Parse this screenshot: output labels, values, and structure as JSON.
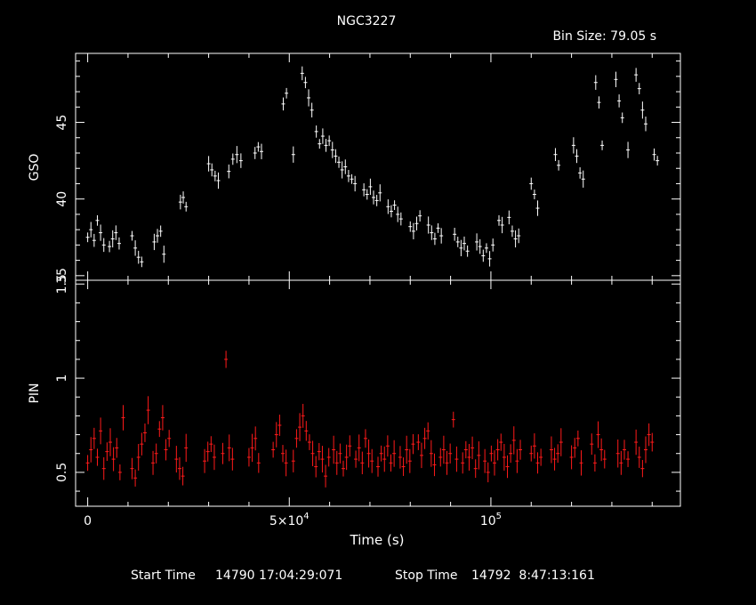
{
  "chart_data": [
    {
      "type": "scatter",
      "title": "NGC3227",
      "subtitle": "Bin Size: 79.05 s",
      "ylabel": "GSO",
      "xlim": [
        -3000,
        147000
      ],
      "ylim": [
        34.7,
        49.5
      ],
      "yticks": [
        35,
        40,
        45
      ],
      "ytick_labels": [
        "35",
        "40",
        "45"
      ],
      "grid": false,
      "series": [
        {
          "color": "#ffffff",
          "points": [
            [
              0,
              37.5
            ],
            [
              800,
              38.0
            ],
            [
              1600,
              37.3
            ],
            [
              2400,
              38.6
            ],
            [
              3200,
              37.8
            ],
            [
              4000,
              37.0
            ],
            [
              5400,
              36.9
            ],
            [
              6200,
              37.4
            ],
            [
              7000,
              37.8
            ],
            [
              7800,
              37.1
            ],
            [
              11000,
              37.6
            ],
            [
              11800,
              36.8
            ],
            [
              12600,
              36.2
            ],
            [
              13400,
              35.9
            ],
            [
              16500,
              37.2
            ],
            [
              17300,
              37.6
            ],
            [
              18100,
              37.9
            ],
            [
              18900,
              36.4
            ],
            [
              23000,
              39.8
            ],
            [
              23700,
              40.1
            ],
            [
              24400,
              39.5
            ],
            [
              30000,
              42.3
            ],
            [
              30800,
              41.9
            ],
            [
              31600,
              41.5
            ],
            [
              32400,
              41.2
            ],
            [
              35000,
              41.8
            ],
            [
              36000,
              42.6
            ],
            [
              37000,
              42.9
            ],
            [
              38000,
              42.5
            ],
            [
              41500,
              43.0
            ],
            [
              42300,
              43.4
            ],
            [
              43100,
              43.1
            ],
            [
              48500,
              46.2
            ],
            [
              49300,
              46.9
            ],
            [
              51000,
              42.9
            ],
            [
              53200,
              48.2
            ],
            [
              54000,
              47.6
            ],
            [
              54800,
              46.6
            ],
            [
              55600,
              45.8
            ],
            [
              56700,
              44.4
            ],
            [
              57500,
              43.6
            ],
            [
              58300,
              44.1
            ],
            [
              59100,
              43.5
            ],
            [
              59900,
              43.8
            ],
            [
              60700,
              43.2
            ],
            [
              61500,
              42.8
            ],
            [
              62300,
              42.4
            ],
            [
              63100,
              41.9
            ],
            [
              63900,
              42.1
            ],
            [
              64700,
              41.5
            ],
            [
              65500,
              41.3
            ],
            [
              66300,
              41.0
            ],
            [
              68500,
              40.6
            ],
            [
              69300,
              40.3
            ],
            [
              70100,
              40.8
            ],
            [
              70900,
              40.1
            ],
            [
              71700,
              39.9
            ],
            [
              72500,
              40.4
            ],
            [
              74500,
              39.5
            ],
            [
              75300,
              39.2
            ],
            [
              76100,
              39.6
            ],
            [
              76900,
              39.0
            ],
            [
              77700,
              38.7
            ],
            [
              80000,
              38.2
            ],
            [
              80800,
              37.9
            ],
            [
              81600,
              38.4
            ],
            [
              82400,
              38.9
            ],
            [
              84500,
              38.3
            ],
            [
              85300,
              37.8
            ],
            [
              86100,
              37.4
            ],
            [
              86900,
              38.1
            ],
            [
              87700,
              37.6
            ],
            [
              91000,
              37.7
            ],
            [
              91800,
              37.2
            ],
            [
              92600,
              36.8
            ],
            [
              93400,
              37.1
            ],
            [
              94200,
              36.6
            ],
            [
              96500,
              37.2
            ],
            [
              97300,
              36.9
            ],
            [
              98100,
              36.3
            ],
            [
              98900,
              36.8
            ],
            [
              99700,
              36.1
            ],
            [
              100500,
              37.0
            ],
            [
              102000,
              38.6
            ],
            [
              102800,
              38.3
            ],
            [
              104500,
              38.8
            ],
            [
              105300,
              37.9
            ],
            [
              106100,
              37.4
            ],
            [
              106900,
              37.6
            ],
            [
              110000,
              41.0
            ],
            [
              110800,
              40.3
            ],
            [
              111600,
              39.4
            ],
            [
              116000,
              42.9
            ],
            [
              116800,
              42.2
            ],
            [
              120500,
              43.5
            ],
            [
              121300,
              42.8
            ],
            [
              122100,
              41.7
            ],
            [
              122900,
              41.3
            ],
            [
              126000,
              47.6
            ],
            [
              126800,
              46.3
            ],
            [
              127600,
              43.5
            ],
            [
              131000,
              47.8
            ],
            [
              131800,
              46.4
            ],
            [
              132600,
              45.3
            ],
            [
              134000,
              43.2
            ],
            [
              136000,
              48.1
            ],
            [
              136800,
              47.2
            ],
            [
              137600,
              45.8
            ],
            [
              138400,
              44.9
            ],
            [
              140500,
              42.9
            ],
            [
              141300,
              42.5
            ]
          ]
        }
      ]
    },
    {
      "type": "scatter",
      "xlabel": "Time (s)",
      "ylabel": "PIN",
      "xlim": [
        -3000,
        147000
      ],
      "ylim": [
        0.32,
        1.52
      ],
      "xticks": [
        0,
        50000,
        100000
      ],
      "xtick_labels": [
        {
          "base": "0",
          "exp": ""
        },
        {
          "base": "5×10",
          "exp": "4"
        },
        {
          "base": "10",
          "exp": "5"
        }
      ],
      "yticks": [
        0.5,
        1,
        1.5
      ],
      "ytick_labels": [
        "0.5",
        "1",
        "1.5"
      ],
      "grid": false,
      "series": [
        {
          "color": "#ff1a1a",
          "points": [
            [
              0,
              0.55
            ],
            [
              800,
              0.62
            ],
            [
              1600,
              0.68
            ],
            [
              2400,
              0.58
            ],
            [
              3200,
              0.72
            ],
            [
              4000,
              0.52
            ],
            [
              4800,
              0.61
            ],
            [
              5600,
              0.66
            ],
            [
              6400,
              0.57
            ],
            [
              7200,
              0.63
            ],
            [
              8000,
              0.5
            ],
            [
              8800,
              0.79
            ],
            [
              11000,
              0.52
            ],
            [
              11800,
              0.47
            ],
            [
              12600,
              0.58
            ],
            [
              13400,
              0.65
            ],
            [
              14200,
              0.71
            ],
            [
              15000,
              0.83
            ],
            [
              16200,
              0.55
            ],
            [
              17000,
              0.6
            ],
            [
              17800,
              0.73
            ],
            [
              18600,
              0.79
            ],
            [
              19400,
              0.62
            ],
            [
              20200,
              0.68
            ],
            [
              22000,
              0.57
            ],
            [
              22800,
              0.52
            ],
            [
              23600,
              0.48
            ],
            [
              24400,
              0.63
            ],
            [
              29000,
              0.56
            ],
            [
              29800,
              0.61
            ],
            [
              30600,
              0.65
            ],
            [
              31400,
              0.58
            ],
            [
              33500,
              0.6
            ],
            [
              34300,
              1.1
            ],
            [
              35100,
              0.63
            ],
            [
              35900,
              0.57
            ],
            [
              40000,
              0.58
            ],
            [
              40800,
              0.63
            ],
            [
              41600,
              0.68
            ],
            [
              42400,
              0.55
            ],
            [
              46000,
              0.62
            ],
            [
              46800,
              0.7
            ],
            [
              47600,
              0.75
            ],
            [
              48400,
              0.6
            ],
            [
              49200,
              0.55
            ],
            [
              51000,
              0.56
            ],
            [
              51800,
              0.68
            ],
            [
              52600,
              0.74
            ],
            [
              53400,
              0.8
            ],
            [
              54200,
              0.72
            ],
            [
              55000,
              0.66
            ],
            [
              55800,
              0.6
            ],
            [
              56600,
              0.53
            ],
            [
              57400,
              0.61
            ],
            [
              58200,
              0.57
            ],
            [
              59000,
              0.48
            ],
            [
              59800,
              0.58
            ],
            [
              61000,
              0.62
            ],
            [
              61800,
              0.55
            ],
            [
              62600,
              0.6
            ],
            [
              63400,
              0.52
            ],
            [
              64200,
              0.58
            ],
            [
              65000,
              0.64
            ],
            [
              66500,
              0.57
            ],
            [
              67300,
              0.63
            ],
            [
              68100,
              0.55
            ],
            [
              68900,
              0.68
            ],
            [
              69700,
              0.6
            ],
            [
              70500,
              0.56
            ],
            [
              72000,
              0.53
            ],
            [
              72800,
              0.6
            ],
            [
              73600,
              0.57
            ],
            [
              74400,
              0.64
            ],
            [
              75200,
              0.55
            ],
            [
              76000,
              0.6
            ],
            [
              77500,
              0.58
            ],
            [
              78300,
              0.53
            ],
            [
              79100,
              0.62
            ],
            [
              79900,
              0.56
            ],
            [
              80700,
              0.65
            ],
            [
              82000,
              0.66
            ],
            [
              82800,
              0.59
            ],
            [
              83600,
              0.68
            ],
            [
              84400,
              0.72
            ],
            [
              85200,
              0.6
            ],
            [
              86000,
              0.54
            ],
            [
              87500,
              0.58
            ],
            [
              88300,
              0.62
            ],
            [
              89100,
              0.55
            ],
            [
              89900,
              0.6
            ],
            [
              90700,
              0.78
            ],
            [
              91500,
              0.57
            ],
            [
              93000,
              0.55
            ],
            [
              93800,
              0.62
            ],
            [
              94600,
              0.58
            ],
            [
              95400,
              0.63
            ],
            [
              96200,
              0.52
            ],
            [
              97000,
              0.59
            ],
            [
              98500,
              0.56
            ],
            [
              99300,
              0.5
            ],
            [
              100100,
              0.6
            ],
            [
              100900,
              0.55
            ],
            [
              101700,
              0.62
            ],
            [
              102500,
              0.66
            ],
            [
              103300,
              0.58
            ],
            [
              104100,
              0.53
            ],
            [
              104900,
              0.6
            ],
            [
              105700,
              0.67
            ],
            [
              106500,
              0.56
            ],
            [
              107300,
              0.62
            ],
            [
              110000,
              0.6
            ],
            [
              110800,
              0.64
            ],
            [
              111600,
              0.55
            ],
            [
              112400,
              0.58
            ],
            [
              115000,
              0.62
            ],
            [
              115800,
              0.57
            ],
            [
              116600,
              0.6
            ],
            [
              117400,
              0.66
            ],
            [
              120000,
              0.58
            ],
            [
              120800,
              0.63
            ],
            [
              121600,
              0.68
            ],
            [
              122400,
              0.55
            ],
            [
              125000,
              0.65
            ],
            [
              125800,
              0.55
            ],
            [
              126600,
              0.7
            ],
            [
              127400,
              0.62
            ],
            [
              128200,
              0.57
            ],
            [
              131500,
              0.6
            ],
            [
              132300,
              0.55
            ],
            [
              133100,
              0.62
            ],
            [
              134000,
              0.57
            ],
            [
              136000,
              0.66
            ],
            [
              136800,
              0.58
            ],
            [
              137600,
              0.52
            ],
            [
              138400,
              0.62
            ],
            [
              139200,
              0.7
            ],
            [
              140000,
              0.66
            ]
          ]
        }
      ]
    }
  ],
  "footer": {
    "start_label": "Start Time",
    "start_value": "14790 17:04:29:071",
    "stop_label": "Stop Time",
    "stop_value": "14792  8:47:13:161"
  }
}
